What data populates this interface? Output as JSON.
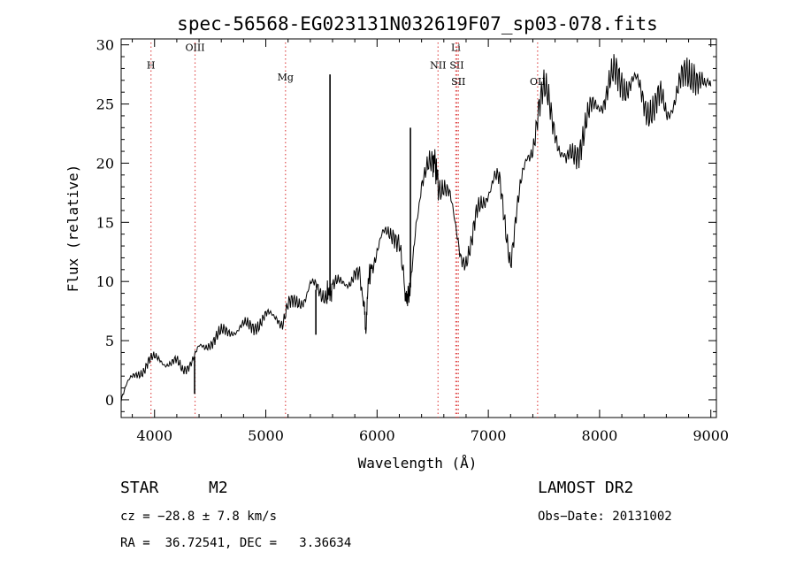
{
  "chart_data": {
    "type": "line",
    "title": "spec-56568-EG023131N032619F07_sp03-078.fits",
    "xlabel": "Wavelength (Å)",
    "ylabel": "Flux (relative)",
    "xlim": [
      3700,
      9050
    ],
    "ylim": [
      -1.5,
      30.5
    ],
    "xticks": [
      4000,
      5000,
      6000,
      7000,
      8000,
      9000
    ],
    "yticks": [
      0,
      5,
      10,
      15,
      20,
      25,
      30
    ],
    "grid": false,
    "series": [
      {
        "x": [
          3700,
          3750,
          3800,
          3850,
          3900,
          3950,
          4000,
          4050,
          4100,
          4150,
          4200,
          4250,
          4300,
          4350,
          4400,
          4450,
          4500,
          4550,
          4600,
          4650,
          4700,
          4750,
          4800,
          4850,
          4900,
          4950,
          5000,
          5050,
          5100,
          5150,
          5200,
          5250,
          5300,
          5350,
          5400,
          5450,
          5500,
          5550,
          5577,
          5600,
          5650,
          5700,
          5750,
          5800,
          5850,
          5880,
          5900,
          5920,
          5950,
          6000,
          6050,
          6100,
          6150,
          6200,
          6250,
          6270,
          6300,
          6350,
          6400,
          6450,
          6500,
          6520,
          6550,
          6600,
          6650,
          6700,
          6750,
          6800,
          6850,
          6900,
          6950,
          7000,
          7050,
          7100,
          7150,
          7200,
          7250,
          7300,
          7350,
          7400,
          7450,
          7500,
          7550,
          7600,
          7650,
          7700,
          7750,
          7800,
          7850,
          7900,
          7950,
          8000,
          8050,
          8100,
          8150,
          8200,
          8250,
          8300,
          8350,
          8400,
          8450,
          8500,
          8550,
          8600,
          8650,
          8700,
          8750,
          8800,
          8850,
          8900,
          8950,
          9000
        ],
        "values": [
          0.2,
          1.2,
          1.8,
          2.3,
          2.6,
          3.2,
          3.4,
          3.5,
          3.2,
          3.0,
          3.1,
          2.6,
          3.0,
          3.5,
          4.2,
          4.4,
          5.0,
          5.3,
          5.5,
          5.7,
          6.0,
          6.0,
          6.1,
          6.2,
          6.4,
          6.6,
          6.9,
          7.0,
          7.2,
          6.6,
          7.8,
          8.0,
          8.4,
          8.8,
          9.6,
          9.3,
          9.0,
          9.2,
          9.0,
          9.4,
          9.6,
          10.0,
          10.3,
          10.6,
          10.0,
          8.0,
          6.0,
          9.8,
          11.5,
          12.5,
          13.5,
          14.0,
          14.5,
          13.5,
          9.0,
          8.5,
          9.5,
          15.5,
          18.5,
          19.0,
          19.5,
          20.0,
          18.5,
          18.5,
          17.0,
          14.5,
          12.5,
          12.0,
          13.0,
          15.5,
          17.0,
          18.0,
          18.5,
          18.0,
          15.0,
          12.0,
          15.5,
          18.0,
          20.5,
          22.0,
          24.5,
          25.5,
          25.0,
          23.5,
          21.0,
          19.5,
          20.5,
          21.5,
          22.5,
          23.5,
          24.5,
          25.5,
          26.0,
          26.5,
          27.0,
          27.3,
          27.0,
          26.5,
          26.0,
          25.5,
          25.0,
          24.5,
          25.0,
          24.5,
          25.5,
          26.0,
          26.5,
          27.5,
          28.5,
          27.0,
          25.5,
          26.5
        ]
      }
    ],
    "spikes": [
      {
        "x": 5577,
        "value": 27.5
      },
      {
        "x": 6300,
        "value": 23.0
      },
      {
        "x": 4360,
        "value": 0.5
      },
      {
        "x": 5450,
        "value": 5.5
      }
    ],
    "lines": [
      {
        "name": "H",
        "x": 3968,
        "label_y": 28.0
      },
      {
        "name": "OIII",
        "x": 4364,
        "label_y": 29.5
      },
      {
        "name": "Mg",
        "x": 5177,
        "label_y": 27.0
      },
      {
        "name": "NII",
        "x": 6548,
        "label_y": 28.0
      },
      {
        "name": "Li",
        "x": 6708,
        "label_y": 29.5
      },
      {
        "name": "SII",
        "x": 6717,
        "label_y": 28.0
      },
      {
        "name": "SII",
        "x": 6731,
        "label_y": 26.6
      },
      {
        "name": "OII",
        "x": 7443,
        "label_y": 26.6
      }
    ],
    "line_color": "#e05050"
  },
  "info": {
    "class": "STAR",
    "subclass": "M2",
    "survey": "LAMOST DR2",
    "cz": "cz = −28.8 ± 7.8 km/s",
    "obsdate": "Obs−Date: 20131002",
    "coords": "RA =  36.72541, DEC =   3.36634"
  }
}
